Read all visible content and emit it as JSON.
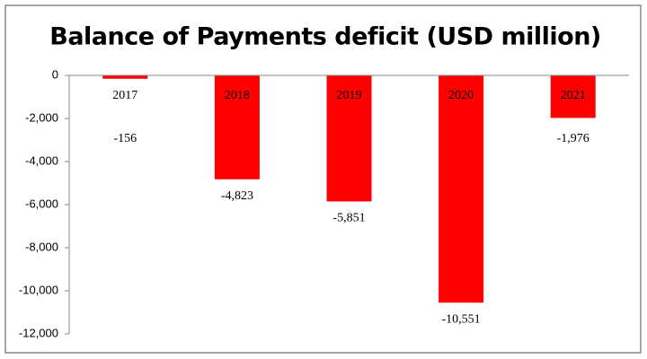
{
  "chart_data": {
    "type": "bar",
    "title": "Balance of Payments deficit (USD million)",
    "categories": [
      "2017",
      "2018",
      "2019",
      "2020",
      "2021"
    ],
    "values": [
      -156,
      -4823,
      -5851,
      -10551,
      -1976
    ],
    "value_labels": [
      "-156",
      "-4,823",
      "-5,851",
      "-10,551",
      "-1,976"
    ],
    "color": "#ff0000",
    "ylim": [
      -12000,
      0
    ],
    "yticks": [
      {
        "value": 0,
        "label": "0"
      },
      {
        "value": -2000,
        "label": "-2,000"
      },
      {
        "value": -4000,
        "label": "-4,000"
      },
      {
        "value": -6000,
        "label": "-6,000"
      },
      {
        "value": -8000,
        "label": "-8,000"
      },
      {
        "value": -10000,
        "label": "-10,000"
      },
      {
        "value": -12000,
        "label": "-12,000"
      }
    ],
    "grid": false
  }
}
